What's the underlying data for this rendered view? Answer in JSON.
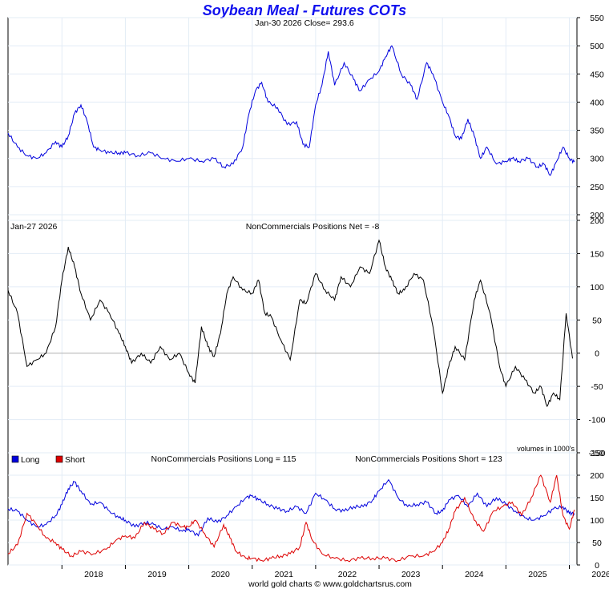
{
  "chart_data": {
    "type": "line",
    "title": "Soybean Meal - Futures COTs",
    "footer": "world gold charts © www.goldchartsrus.com",
    "x_ticks": [
      "2018",
      "2019",
      "2020",
      "2021",
      "2022",
      "2023",
      "2024",
      "2025",
      "2026"
    ],
    "x_range": [
      2017.15,
      2026.12
    ],
    "panels": [
      {
        "name": "price",
        "header": "Jan-30  2026   Close= 293.6",
        "ylim": [
          190,
          550
        ],
        "yticks": [
          200,
          250,
          300,
          350,
          400,
          450,
          500,
          550
        ],
        "series": [
          {
            "name": "Close",
            "color": "#0000dd",
            "x": [
              2017.15,
              2017.3,
              2017.45,
              2017.6,
              2017.75,
              2017.9,
              2018.0,
              2018.1,
              2018.2,
              2018.3,
              2018.4,
              2018.5,
              2018.6,
              2018.75,
              2018.9,
              2019.0,
              2019.2,
              2019.4,
              2019.6,
              2019.8,
              2020.0,
              2020.2,
              2020.4,
              2020.55,
              2020.7,
              2020.85,
              2020.95,
              2021.05,
              2021.15,
              2021.25,
              2021.4,
              2021.55,
              2021.7,
              2021.8,
              2021.9,
              2022.0,
              2022.1,
              2022.2,
              2022.3,
              2022.45,
              2022.6,
              2022.7,
              2022.85,
              2023.0,
              2023.1,
              2023.2,
              2023.35,
              2023.5,
              2023.6,
              2023.75,
              2023.85,
              2024.0,
              2024.1,
              2024.2,
              2024.3,
              2024.4,
              2024.5,
              2024.6,
              2024.7,
              2024.85,
              2025.0,
              2025.1,
              2025.2,
              2025.35,
              2025.5,
              2025.6,
              2025.7,
              2025.8,
              2025.9,
              2026.0,
              2026.08
            ],
            "y": [
              345,
              320,
              305,
              300,
              310,
              330,
              320,
              340,
              380,
              395,
              365,
              320,
              315,
              310,
              310,
              310,
              305,
              310,
              300,
              295,
              300,
              295,
              300,
              285,
              290,
              320,
              380,
              420,
              435,
              400,
              390,
              360,
              365,
              325,
              320,
              395,
              430,
              490,
              430,
              470,
              440,
              420,
              440,
              455,
              480,
              500,
              450,
              430,
              405,
              470,
              450,
              400,
              375,
              340,
              335,
              370,
              340,
              300,
              320,
              290,
              295,
              300,
              295,
              300,
              285,
              290,
              270,
              295,
              320,
              300,
              293.6
            ]
          }
        ]
      },
      {
        "name": "net",
        "header_left": "Jan-27  2026",
        "header": "NonCommercials Positions Net = -8",
        "note": "volumes in 1000's",
        "ylim": [
          -150,
          200
        ],
        "yticks": [
          -150,
          -100,
          -50,
          0,
          50,
          100,
          150,
          200
        ],
        "series": [
          {
            "name": "Net",
            "color": "#000000",
            "x": [
              2017.15,
              2017.3,
              2017.45,
              2017.6,
              2017.75,
              2017.9,
              2018.0,
              2018.1,
              2018.2,
              2018.3,
              2018.45,
              2018.6,
              2018.75,
              2018.9,
              2019.0,
              2019.1,
              2019.25,
              2019.4,
              2019.55,
              2019.7,
              2019.85,
              2020.0,
              2020.1,
              2020.2,
              2020.3,
              2020.4,
              2020.5,
              2020.6,
              2020.7,
              2020.85,
              2021.0,
              2021.1,
              2021.2,
              2021.3,
              2021.45,
              2021.6,
              2021.75,
              2021.85,
              2022.0,
              2022.15,
              2022.3,
              2022.4,
              2022.55,
              2022.7,
              2022.85,
              2023.0,
              2023.1,
              2023.2,
              2023.3,
              2023.4,
              2023.55,
              2023.7,
              2023.85,
              2024.0,
              2024.1,
              2024.2,
              2024.35,
              2024.5,
              2024.6,
              2024.75,
              2024.9,
              2025.0,
              2025.15,
              2025.3,
              2025.45,
              2025.55,
              2025.65,
              2025.75,
              2025.85,
              2025.95,
              2026.05
            ],
            "y": [
              95,
              60,
              -20,
              -10,
              0,
              40,
              110,
              160,
              130,
              90,
              50,
              80,
              60,
              30,
              10,
              -15,
              0,
              -15,
              10,
              -10,
              0,
              -30,
              -45,
              40,
              10,
              -5,
              30,
              90,
              115,
              95,
              90,
              110,
              60,
              55,
              20,
              -10,
              80,
              75,
              120,
              95,
              80,
              115,
              100,
              130,
              120,
              170,
              130,
              110,
              90,
              95,
              120,
              110,
              40,
              -60,
              -20,
              10,
              -10,
              80,
              110,
              60,
              -20,
              -50,
              -20,
              -40,
              -60,
              -50,
              -80,
              -60,
              -70,
              60,
              -8
            ]
          }
        ]
      },
      {
        "name": "long_short",
        "header": "NonCommercials Positions Long = 115",
        "header2": "NonCommercials Positions Short = 123",
        "legend": [
          {
            "label": "Long",
            "color": "#0000dd"
          },
          {
            "label": "Short",
            "color": "#dd0000"
          }
        ],
        "ylim": [
          0,
          250
        ],
        "yticks": [
          0,
          50,
          100,
          150,
          200,
          250
        ],
        "series": [
          {
            "name": "Long",
            "color": "#0000dd",
            "x": [
              2017.15,
              2017.3,
              2017.45,
              2017.6,
              2017.75,
              2017.9,
              2018.0,
              2018.1,
              2018.2,
              2018.3,
              2018.45,
              2018.6,
              2018.75,
              2018.9,
              2019.0,
              2019.15,
              2019.3,
              2019.45,
              2019.6,
              2019.75,
              2019.9,
              2020.0,
              2020.15,
              2020.3,
              2020.45,
              2020.6,
              2020.75,
              2020.9,
              2021.0,
              2021.1,
              2021.25,
              2021.4,
              2021.55,
              2021.7,
              2021.85,
              2022.0,
              2022.15,
              2022.3,
              2022.45,
              2022.6,
              2022.75,
              2022.9,
              2023.0,
              2023.15,
              2023.3,
              2023.45,
              2023.6,
              2023.75,
              2023.9,
              2024.0,
              2024.1,
              2024.25,
              2024.4,
              2024.55,
              2024.7,
              2024.85,
              2025.0,
              2025.15,
              2025.3,
              2025.45,
              2025.6,
              2025.75,
              2025.9,
              2026.0,
              2026.08
            ],
            "y": [
              125,
              120,
              100,
              85,
              90,
              110,
              135,
              170,
              185,
              165,
              135,
              140,
              120,
              105,
              100,
              85,
              95,
              90,
              80,
              85,
              75,
              80,
              65,
              105,
              95,
              110,
              130,
              150,
              155,
              145,
              135,
              125,
              120,
              130,
              115,
              160,
              145,
              125,
              120,
              130,
              130,
              145,
              165,
              190,
              150,
              130,
              135,
              140,
              115,
              120,
              145,
              155,
              130,
              160,
              130,
              150,
              135,
              120,
              105,
              100,
              110,
              125,
              130,
              115,
              115
            ]
          },
          {
            "name": "Short",
            "color": "#dd0000",
            "x": [
              2017.15,
              2017.3,
              2017.45,
              2017.6,
              2017.75,
              2017.9,
              2018.0,
              2018.15,
              2018.3,
              2018.5,
              2018.7,
              2018.85,
              2019.0,
              2019.15,
              2019.3,
              2019.45,
              2019.6,
              2019.75,
              2019.9,
              2020.0,
              2020.1,
              2020.25,
              2020.4,
              2020.55,
              2020.65,
              2020.75,
              2020.9,
              2021.0,
              2021.15,
              2021.3,
              2021.45,
              2021.6,
              2021.75,
              2021.85,
              2021.95,
              2022.1,
              2022.3,
              2022.5,
              2022.7,
              2022.9,
              2023.1,
              2023.3,
              2023.5,
              2023.7,
              2023.85,
              2024.0,
              2024.1,
              2024.2,
              2024.35,
              2024.5,
              2024.65,
              2024.8,
              2024.95,
              2025.1,
              2025.25,
              2025.4,
              2025.55,
              2025.7,
              2025.8,
              2025.9,
              2026.0,
              2026.08
            ],
            "y": [
              25,
              45,
              115,
              90,
              60,
              50,
              35,
              20,
              30,
              25,
              35,
              55,
              65,
              60,
              95,
              80,
              70,
              95,
              85,
              85,
              100,
              70,
              40,
              90,
              60,
              30,
              15,
              15,
              10,
              15,
              20,
              25,
              40,
              95,
              55,
              25,
              15,
              10,
              15,
              15,
              15,
              10,
              20,
              20,
              30,
              50,
              80,
              120,
              150,
              100,
              75,
              120,
              130,
              140,
              110,
              150,
              200,
              140,
              200,
              110,
              80,
              123
            ]
          }
        ]
      }
    ]
  }
}
